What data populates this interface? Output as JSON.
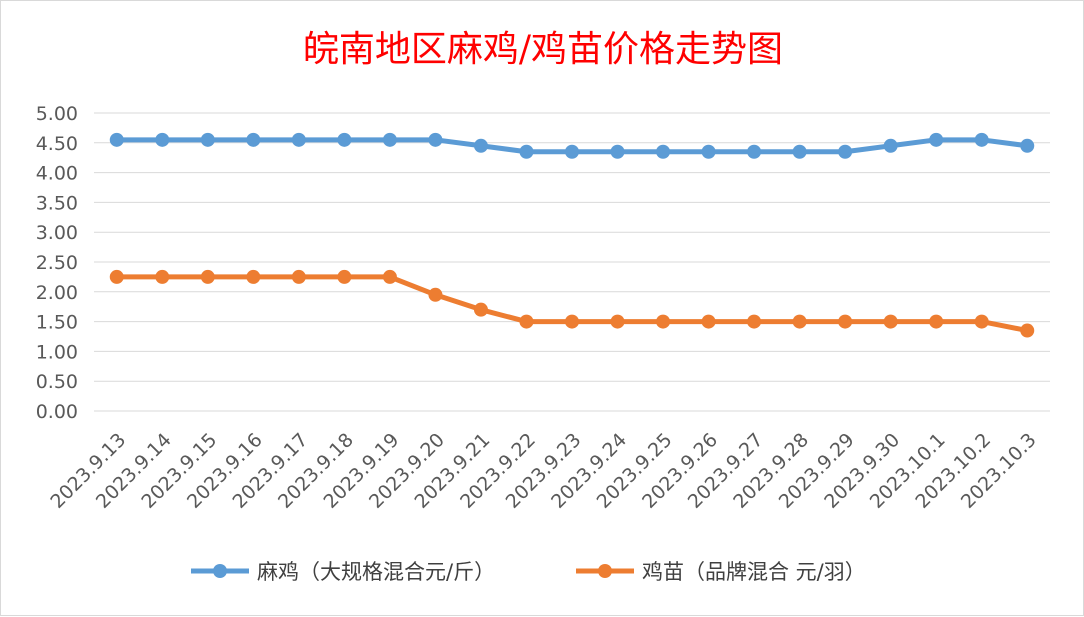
{
  "chart_data": {
    "type": "line",
    "title": "皖南地区麻鸡/鸡苗价格走势图",
    "xlabel": "",
    "ylabel": "",
    "categories": [
      "2023.9.13",
      "2023.9.14",
      "2023.9.15",
      "2023.9.16",
      "2023.9.17",
      "2023.9.18",
      "2023.9.19",
      "2023.9.20",
      "2023.9.21",
      "2023.9.22",
      "2023.9.23",
      "2023.9.24",
      "2023.9.25",
      "2023.9.26",
      "2023.9.27",
      "2023.9.28",
      "2023.9.29",
      "2023.9.30",
      "2023.10.1",
      "2023.10.2",
      "2023.10.3"
    ],
    "series": [
      {
        "name": "麻鸡（大规格混合元/斤）",
        "color": "#5b9bd5",
        "values": [
          4.55,
          4.55,
          4.55,
          4.55,
          4.55,
          4.55,
          4.55,
          4.55,
          4.45,
          4.35,
          4.35,
          4.35,
          4.35,
          4.35,
          4.35,
          4.35,
          4.35,
          4.45,
          4.55,
          4.55,
          4.45
        ]
      },
      {
        "name": "鸡苗（品牌混合 元/羽）",
        "color": "#ed7d31",
        "values": [
          2.25,
          2.25,
          2.25,
          2.25,
          2.25,
          2.25,
          2.25,
          1.95,
          1.7,
          1.5,
          1.5,
          1.5,
          1.5,
          1.5,
          1.5,
          1.5,
          1.5,
          1.5,
          1.5,
          1.5,
          1.35
        ]
      }
    ],
    "ylim": [
      0,
      5.0
    ],
    "yticks": [
      "0.00",
      "0.50",
      "1.00",
      "1.50",
      "2.00",
      "2.50",
      "3.00",
      "3.50",
      "4.00",
      "4.50",
      "5.00"
    ],
    "grid": true,
    "legend_position": "bottom",
    "title_color": "#ff0000",
    "axis_label_color": "#595959",
    "grid_color": "#d9d9d9"
  }
}
